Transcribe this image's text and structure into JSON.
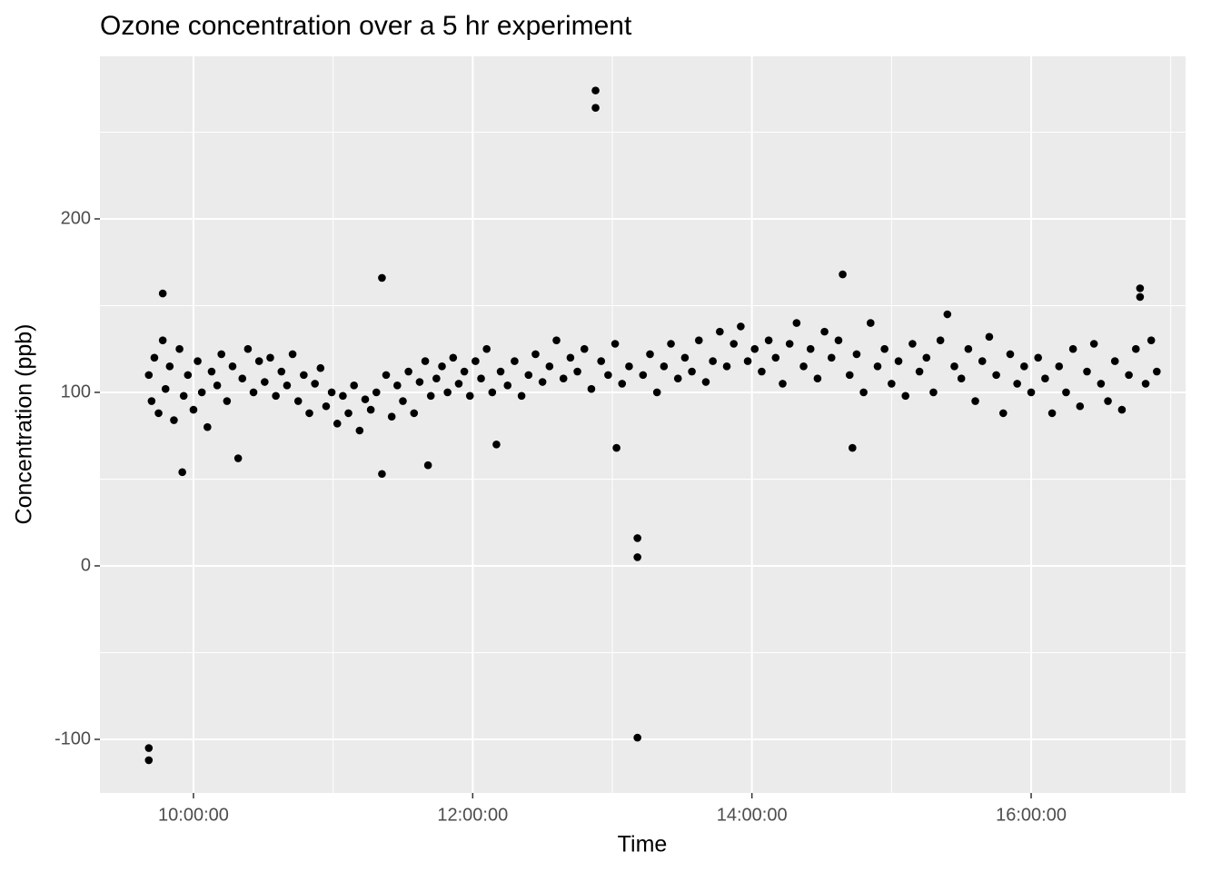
{
  "chart_data": {
    "type": "scatter",
    "title": "Ozone concentration over a 5 hr experiment",
    "xlabel": "Time",
    "ylabel": "Concentration (ppb)",
    "color": "#000000",
    "grid": true,
    "xlim": [
      9.33,
      17.106
    ],
    "ylim": [
      -130.9,
      293.7
    ],
    "xticks": [
      {
        "value": 10,
        "label": "10:00:00"
      },
      {
        "value": 12,
        "label": "12:00:00"
      },
      {
        "value": 14,
        "label": "14:00:00"
      },
      {
        "value": 16,
        "label": "16:00:00"
      }
    ],
    "yticks": [
      -100,
      0,
      100,
      200
    ],
    "x": [
      9.68,
      9.68,
      12.88,
      12.88,
      13.18,
      13.18,
      13.18,
      13.03,
      11.35,
      11.35,
      14.65,
      9.78,
      16.78,
      16.78,
      9.92,
      11.68,
      14.72,
      9.68,
      9.7,
      9.72,
      9.75,
      9.78,
      9.8,
      9.83,
      9.86,
      9.9,
      9.93,
      9.96,
      10.0,
      10.03,
      10.06,
      10.1,
      10.13,
      10.17,
      10.2,
      10.24,
      10.28,
      10.32,
      10.35,
      10.39,
      10.43,
      10.47,
      10.51,
      10.55,
      10.59,
      10.63,
      10.67,
      10.71,
      10.75,
      10.79,
      10.83,
      10.87,
      10.91,
      10.95,
      10.99,
      11.03,
      11.07,
      11.11,
      11.15,
      11.19,
      11.23,
      11.27,
      11.31,
      11.38,
      11.42,
      11.46,
      11.5,
      11.54,
      11.58,
      11.62,
      11.66,
      11.7,
      11.74,
      11.78,
      11.82,
      11.86,
      11.9,
      11.94,
      11.98,
      12.02,
      12.06,
      12.1,
      12.14,
      12.17,
      12.2,
      12.25,
      12.3,
      12.35,
      12.4,
      12.45,
      12.5,
      12.55,
      12.6,
      12.65,
      12.7,
      12.75,
      12.8,
      12.85,
      12.92,
      12.97,
      13.02,
      13.07,
      13.12,
      13.22,
      13.27,
      13.32,
      13.37,
      13.42,
      13.47,
      13.52,
      13.57,
      13.62,
      13.67,
      13.72,
      13.77,
      13.82,
      13.87,
      13.92,
      13.97,
      14.02,
      14.07,
      14.12,
      14.17,
      14.22,
      14.27,
      14.32,
      14.37,
      14.42,
      14.47,
      14.52,
      14.57,
      14.62,
      14.7,
      14.75,
      14.8,
      14.85,
      14.9,
      14.95,
      15.0,
      15.05,
      15.1,
      15.15,
      15.2,
      15.25,
      15.3,
      15.35,
      15.4,
      15.45,
      15.5,
      15.55,
      15.6,
      15.65,
      15.7,
      15.75,
      15.8,
      15.85,
      15.9,
      15.95,
      16.0,
      16.05,
      16.1,
      16.15,
      16.2,
      16.25,
      16.3,
      16.35,
      16.4,
      16.45,
      16.5,
      16.55,
      16.6,
      16.65,
      16.7,
      16.75,
      16.82,
      16.86,
      16.9
    ],
    "values": [
      -105,
      -112,
      274,
      264,
      16,
      5,
      -99,
      68,
      166,
      53,
      168,
      157,
      160,
      155,
      54,
      58,
      68,
      110,
      95,
      120,
      88,
      130,
      102,
      115,
      84,
      125,
      98,
      110,
      90,
      118,
      100,
      80,
      112,
      104,
      122,
      95,
      115,
      62,
      108,
      125,
      100,
      118,
      106,
      120,
      98,
      112,
      104,
      122,
      95,
      110,
      88,
      105,
      114,
      92,
      100,
      82,
      98,
      88,
      104,
      78,
      96,
      90,
      100,
      110,
      86,
      104,
      95,
      112,
      88,
      106,
      118,
      98,
      108,
      115,
      100,
      120,
      105,
      112,
      98,
      118,
      108,
      125,
      100,
      70,
      112,
      104,
      118,
      98,
      110,
      122,
      106,
      115,
      130,
      108,
      120,
      112,
      125,
      102,
      118,
      110,
      128,
      105,
      115,
      110,
      122,
      100,
      115,
      128,
      108,
      120,
      112,
      130,
      106,
      118,
      135,
      115,
      128,
      138,
      118,
      125,
      112,
      130,
      120,
      105,
      128,
      140,
      115,
      125,
      108,
      135,
      120,
      130,
      110,
      122,
      100,
      140,
      115,
      125,
      105,
      118,
      98,
      128,
      112,
      120,
      100,
      130,
      145,
      115,
      108,
      125,
      95,
      118,
      132,
      110,
      88,
      122,
      105,
      115,
      100,
      120,
      108,
      88,
      115,
      100,
      125,
      92,
      112,
      128,
      105,
      95,
      118,
      90,
      110,
      125,
      105,
      130,
      112
    ]
  }
}
